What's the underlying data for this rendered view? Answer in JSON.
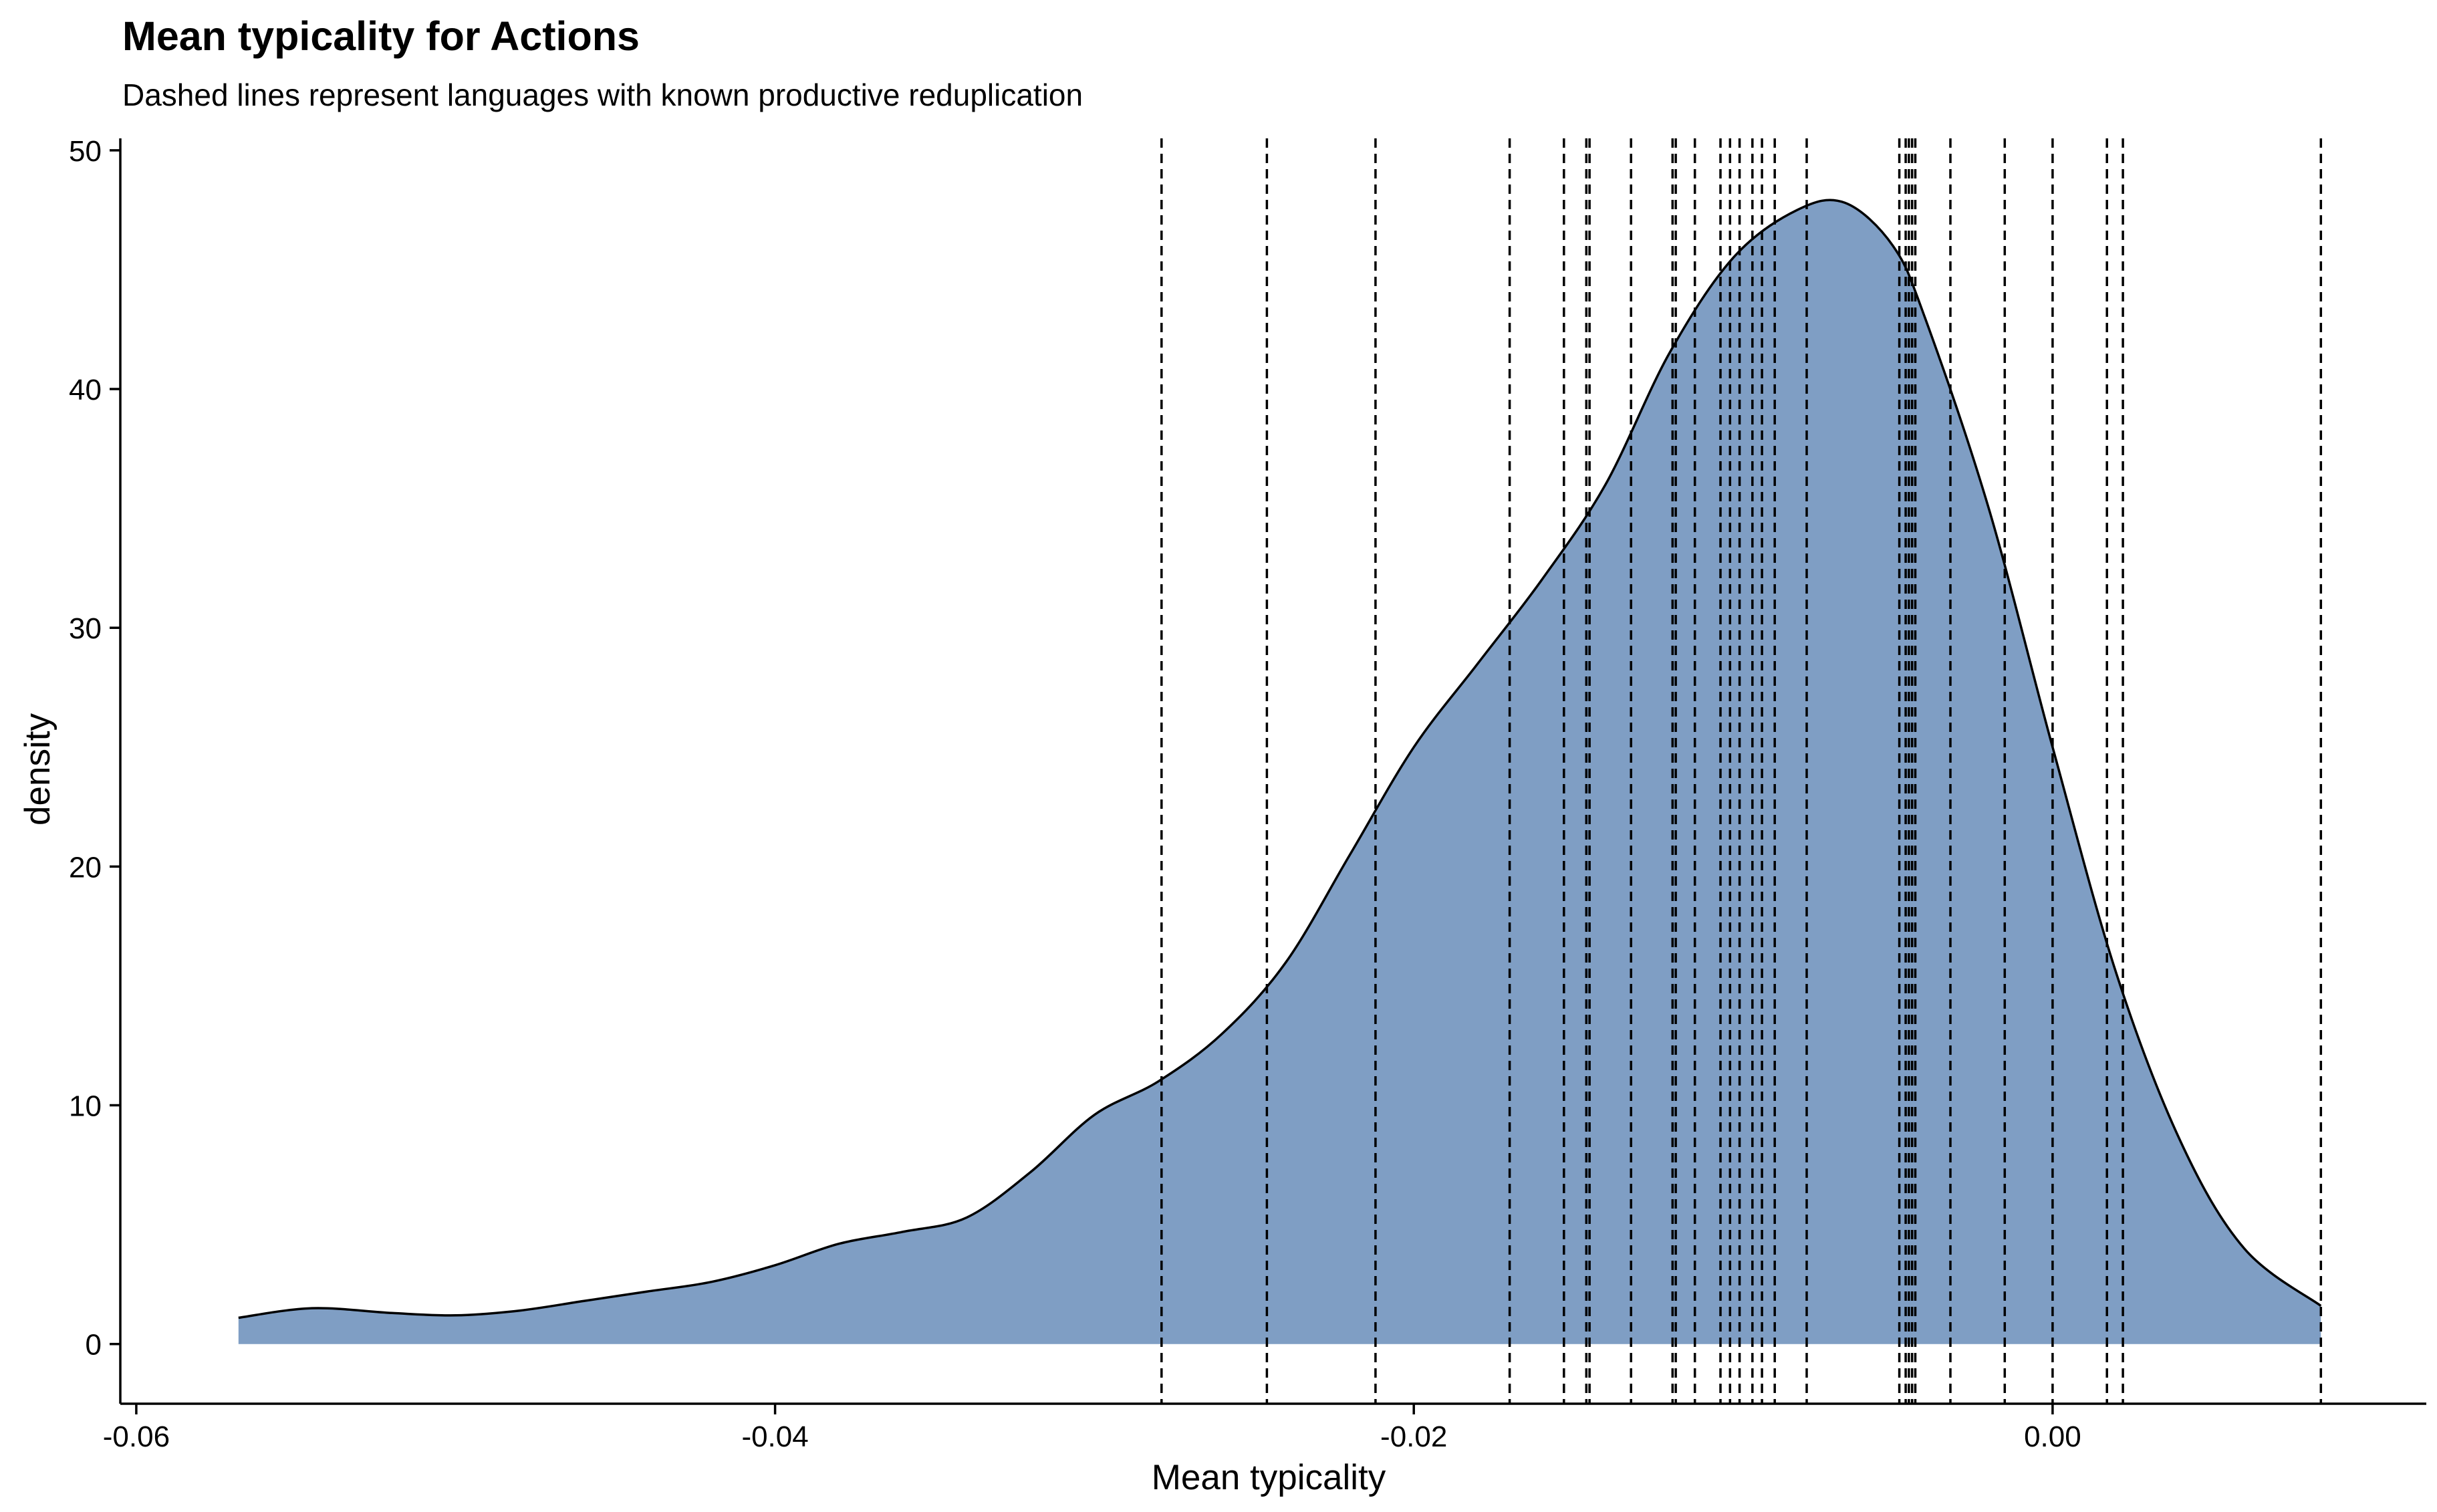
{
  "chart_data": {
    "type": "area",
    "title": "Mean typicality for Actions",
    "subtitle": "Dashed lines represent languages with known productive reduplication",
    "xlabel": "Mean typicality",
    "ylabel": "density",
    "xlim": [
      -0.0605,
      0.0117
    ],
    "ylim": [
      -2.5,
      50.5
    ],
    "x_ticks": [
      -0.06,
      -0.04,
      -0.02,
      0.0
    ],
    "x_tick_labels": [
      "-0.06",
      "-0.04",
      "-0.02",
      "0.00"
    ],
    "y_ticks": [
      0,
      10,
      20,
      30,
      40,
      50
    ],
    "y_tick_labels": [
      "0",
      "10",
      "20",
      "30",
      "40",
      "50"
    ],
    "grid": false,
    "legend": "none",
    "fill_color": "#7F9EC4",
    "line_color": "#000000",
    "density": {
      "x": [
        -0.0568,
        -0.0545,
        -0.052,
        -0.05,
        -0.048,
        -0.046,
        -0.044,
        -0.042,
        -0.04,
        -0.038,
        -0.036,
        -0.034,
        -0.032,
        -0.03,
        -0.028,
        -0.026,
        -0.024,
        -0.022,
        -0.02,
        -0.018,
        -0.016,
        -0.014,
        -0.012,
        -0.01,
        -0.008,
        -0.0065,
        -0.005,
        -0.004,
        -0.002,
        0.0,
        0.002,
        0.004,
        0.006,
        0.0084
      ],
      "y": [
        1.1,
        1.5,
        1.3,
        1.2,
        1.4,
        1.8,
        2.2,
        2.6,
        3.3,
        4.2,
        4.7,
        5.3,
        7.2,
        9.6,
        11.0,
        13.0,
        16.0,
        20.5,
        25.0,
        28.5,
        32.0,
        36.0,
        41.5,
        45.5,
        47.5,
        47.8,
        46.0,
        43.0,
        35.0,
        25.0,
        15.5,
        8.5,
        4.0,
        1.6
      ]
    },
    "vlines": [
      -0.0279,
      -0.0246,
      -0.0212,
      -0.017,
      -0.0153,
      -0.0146,
      -0.0145,
      -0.0132,
      -0.0119,
      -0.0118,
      -0.0112,
      -0.0104,
      -0.0101,
      -0.0098,
      -0.0094,
      -0.0091,
      -0.0087,
      -0.0077,
      -0.0048,
      -0.0046,
      -0.0045,
      -0.0044,
      -0.0043,
      -0.0032,
      -0.0015,
      0.0,
      0.0017,
      0.0022,
      0.0084
    ]
  }
}
